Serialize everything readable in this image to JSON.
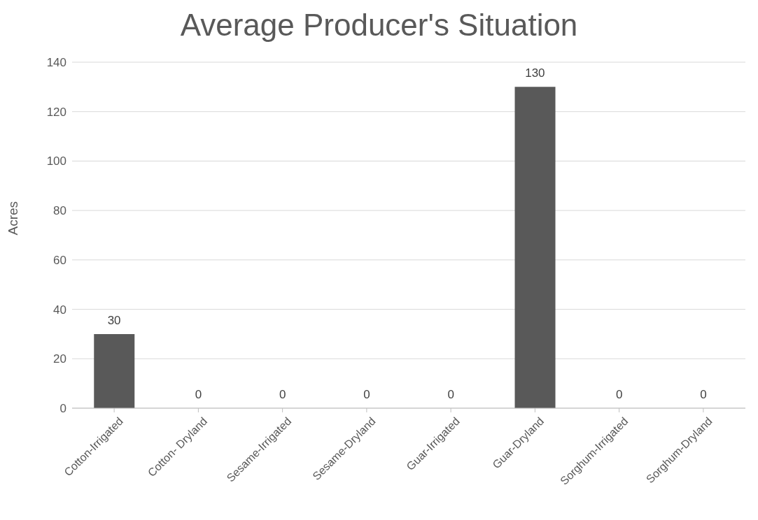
{
  "chart_data": {
    "type": "bar",
    "title": "Average Producer's Situation",
    "ylabel": "Acres",
    "categories": [
      "Cotton-Irrigated",
      "Cotton- Dryland",
      "Sesame-Irrigated",
      "Sesame-Dryland",
      "Guar-Irrigated",
      "Guar-Dryland",
      "Sorghum-Irrigated",
      "Sorghum-Dryland"
    ],
    "values": [
      30,
      0,
      0,
      0,
      0,
      130,
      0,
      0
    ],
    "color": "#595959",
    "ylim": [
      0,
      140
    ],
    "yticks": [
      0,
      20,
      40,
      60,
      80,
      100,
      120,
      140
    ],
    "grid": "y",
    "data_labels": true,
    "legend": false
  }
}
